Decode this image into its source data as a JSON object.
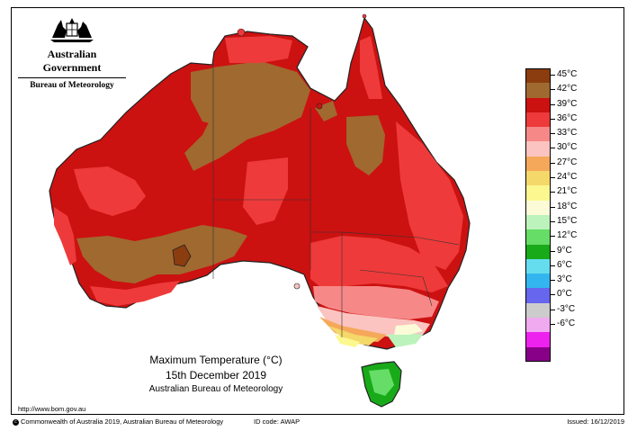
{
  "header": {
    "government": "Australian Government",
    "bureau": "Bureau of Meteorology",
    "crest_icon": "coat-of-arms-icon"
  },
  "map": {
    "title": "Maximum Temperature (°C)",
    "date": "15th December 2019",
    "agency": "Australian Bureau of Meteorology",
    "url": "http://www.bom.gov.au"
  },
  "legend": {
    "items": [
      {
        "label": "45°C",
        "color": "#8b3d0f"
      },
      {
        "label": "42°C",
        "color": "#a0692f"
      },
      {
        "label": "39°C",
        "color": "#cc1111"
      },
      {
        "label": "36°C",
        "color": "#ee3a3a"
      },
      {
        "label": "33°C",
        "color": "#f78888"
      },
      {
        "label": "30°C",
        "color": "#fbc4c0"
      },
      {
        "label": "27°C",
        "color": "#f6a85a"
      },
      {
        "label": "24°C",
        "color": "#f4d86a"
      },
      {
        "label": "21°C",
        "color": "#fcf890"
      },
      {
        "label": "18°C",
        "color": "#fbfbd8"
      },
      {
        "label": "15°C",
        "color": "#bcf2bc"
      },
      {
        "label": "12°C",
        "color": "#66dd66"
      },
      {
        "label": "9°C",
        "color": "#19aa19"
      },
      {
        "label": "6°C",
        "color": "#66ddee"
      },
      {
        "label": "3°C",
        "color": "#33b6f0"
      },
      {
        "label": "0°C",
        "color": "#6666ee"
      },
      {
        "label": "-3°C",
        "color": "#cccccc"
      },
      {
        "label": "-6°C",
        "color": "#f0aaf0"
      },
      {
        "label": "",
        "color": "#ee22ee"
      },
      {
        "label": "",
        "color": "#880088"
      }
    ]
  },
  "footer": {
    "copyright": "Commonwealth of Australia 2019, Australian Bureau of Meteorology",
    "id_code": "ID code: AWAP",
    "issued": "Issued: 16/12/2019"
  }
}
